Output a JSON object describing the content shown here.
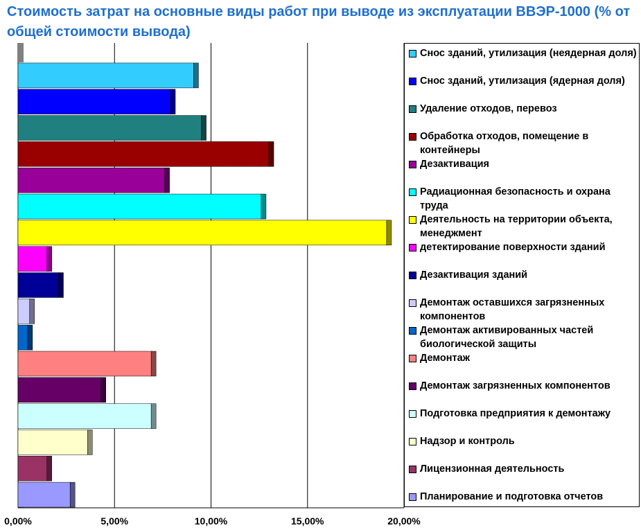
{
  "title": "Стоимость затрат на основные виды работ при выводе из эксплуатации ВВЭР-1000 (% от общей стоимости вывода)",
  "chart_data": {
    "type": "bar",
    "orientation": "horizontal",
    "title": "Стоимость затрат на основные виды работ при выводе из эксплуатации ВВЭР-1000 (% от общей стоимости вывода)",
    "xlabel": "",
    "ylabel": "",
    "xlim": [
      0,
      0.2
    ],
    "xticks": [
      0,
      0.05,
      0.1,
      0.15,
      0.2
    ],
    "xtick_labels": [
      "0,00%",
      "5,00%",
      "10,00%",
      "15,00%",
      "20,00%"
    ],
    "grid": "vertical",
    "legend_position": "right",
    "categories": [
      "Снос зданий, утилизация  (неядерная доля)",
      "Снос зданий, утилизация  (ядерная доля)",
      "Удаление отходов, перевоз",
      "Обработка отходов, помещение в контейнеры",
      "Дезактивация",
      "Радиационная безопасность и охрана труда",
      "Деятельность на территории объекта, менеджмент",
      "детектирование  поверхности зданий",
      "Дезактивация зданий",
      "Демонтаж оставшихся загрязненных компонентов",
      "Демонтаж активированных частей биологической защиты",
      "Демонтаж",
      "Демонтаж загрязненных компонентов",
      "Подготовка предприятия к демонтажу",
      "Надзор и контроль",
      "Лицензионная деятельность",
      "Планирование и подготовка отчетов"
    ],
    "values": [
      0.091,
      0.079,
      0.095,
      0.13,
      0.076,
      0.126,
      0.191,
      0.015,
      0.021,
      0.006,
      0.005,
      0.069,
      0.043,
      0.069,
      0.036,
      0.015,
      0.027
    ],
    "colors": [
      "#33ccff",
      "#0000ff",
      "#208080",
      "#990000",
      "#990099",
      "#00ffff",
      "#ffff00",
      "#ff00ff",
      "#000099",
      "#ccccff",
      "#0066cc",
      "#ff8080",
      "#660066",
      "#ccffff",
      "#ffffcc",
      "#993366",
      "#9999ff"
    ]
  }
}
